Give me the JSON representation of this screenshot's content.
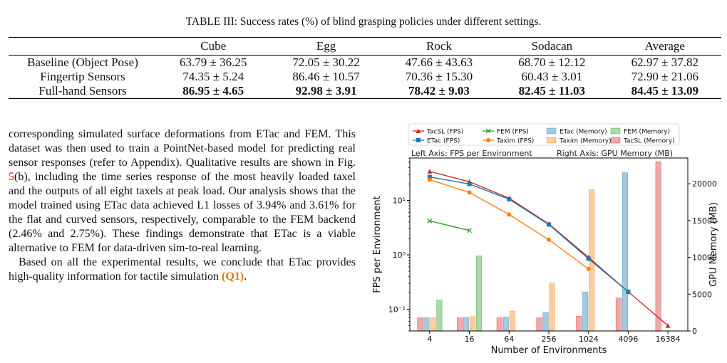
{
  "caption": "TABLE III: Success rates (%) of blind grasping policies under different settings.",
  "table": {
    "headers": [
      "",
      "Cube",
      "Egg",
      "Rock",
      "Sodacan",
      "Average"
    ],
    "rows": [
      {
        "label": "Baseline (Object Pose)",
        "cells": [
          "63.79 ± 36.25",
          "72.05 ± 30.22",
          "47.66 ± 43.63",
          "68.70 ± 12.12",
          "62.97 ± 37.82"
        ],
        "bold": false
      },
      {
        "label": "Fingertip Sensors",
        "cells": [
          "74.35 ± 5.24",
          "86.46 ± 10.57",
          "70.36 ± 15.30",
          "60.43 ± 3.01",
          "72.90 ± 21.06"
        ],
        "bold": false
      },
      {
        "label": "Full-hand Sensors",
        "cells": [
          "86.95 ± 4.65",
          "92.98 ± 3.91",
          "78.42 ± 9.03",
          "82.45 ± 11.03",
          "84.45 ± 13.09"
        ],
        "bold": true
      }
    ]
  },
  "body": {
    "p1_a": "corresponding simulated surface deformations from ETac and FEM. This dataset was then used to train a PointNet-based model for predicting real sensor responses (refer to Appendix). Qualitative results are shown in Fig. ",
    "p1_ref": "5",
    "p1_b": "(b), including the time series response of the most heavily loaded taxel and the outputs of all eight taxels at peak load. Our analysis shows that the model trained using ETac data achieved L1 losses of 3.94% and 3.61% for the flat and curved sensors, respectively, comparable to the FEM backend (2.46% and 2.75%). These findings demonstrate that ETac is a viable alternative to FEM for data-driven sim-to-real learning.",
    "p2_a": "Based on all the experimental results, we conclude that ETac provides high-quality information for tactile simulation ",
    "p2_ref": "(Q1)",
    "p2_b": "."
  },
  "chart_data": {
    "type": "bar+line",
    "xlabel": "Number of Environments",
    "ylabel_left": "FPS per Environment",
    "ylabel_right": "GPU Memory (MB)",
    "left_axis_note": "Left Axis: FPS per Environment",
    "right_axis_note": "Right Axis: GPU Memory (MB)",
    "categories": [
      "4",
      "16",
      "64",
      "256",
      "1024",
      "4096",
      "16384"
    ],
    "yscale_left": "log",
    "ylim_left": [
      0.04,
      60
    ],
    "left_ticks": [
      "10⁻¹",
      "10⁰",
      "10¹"
    ],
    "ylim_right": [
      0,
      23500
    ],
    "right_ticks": [
      "0",
      "5000",
      "10000",
      "15000",
      "20000"
    ],
    "legend": [
      {
        "name": "TacSL (FPS)",
        "kind": "line",
        "color": "#d62728",
        "marker": "triangle"
      },
      {
        "name": "FEM (FPS)",
        "kind": "line",
        "color": "#2ca02c",
        "marker": "x"
      },
      {
        "name": "ETac (Memory)",
        "kind": "bar",
        "color": "#1f77b4"
      },
      {
        "name": "FEM (Memory)",
        "kind": "bar",
        "color": "#2ca02c"
      },
      {
        "name": "ETac (FPS)",
        "kind": "line",
        "color": "#1f77b4",
        "marker": "square"
      },
      {
        "name": "Taxim (FPS)",
        "kind": "line",
        "color": "#ff7f0e",
        "marker": "circle"
      },
      {
        "name": "Taxim (Memory)",
        "kind": "bar",
        "color": "#ff7f0e"
      },
      {
        "name": "TacSL (Memory)",
        "kind": "bar",
        "color": "#d62728"
      }
    ],
    "bar_series": [
      {
        "name": "TacSL (Memory)",
        "color": "#d62728",
        "values": [
          1800,
          1800,
          1800,
          1800,
          2000,
          4500,
          23000
        ]
      },
      {
        "name": "ETac (Memory)",
        "color": "#1f77b4",
        "values": [
          1800,
          1850,
          1900,
          2500,
          5300,
          21500,
          null
        ]
      },
      {
        "name": "Taxim (Memory)",
        "color": "#ff7f0e",
        "values": [
          1800,
          1950,
          2700,
          6500,
          19200,
          null,
          null
        ]
      },
      {
        "name": "FEM (Memory)",
        "color": "#2ca02c",
        "values": [
          4200,
          10200,
          null,
          null,
          null,
          null,
          null
        ]
      }
    ],
    "line_series": [
      {
        "name": "TacSL (FPS)",
        "color": "#d62728",
        "marker": "triangle",
        "values": [
          34,
          22,
          11,
          3.7,
          0.9,
          0.21,
          0.05
        ]
      },
      {
        "name": "ETac (FPS)",
        "color": "#1f77b4",
        "marker": "square",
        "values": [
          27,
          20,
          10.5,
          3.6,
          0.85,
          0.21,
          null
        ]
      },
      {
        "name": "Taxim (FPS)",
        "color": "#ff7f0e",
        "marker": "circle",
        "values": [
          24,
          14,
          5.5,
          1.9,
          0.55,
          null,
          null
        ]
      },
      {
        "name": "FEM (FPS)",
        "color": "#2ca02c",
        "marker": "x",
        "values": [
          4.2,
          2.8,
          null,
          null,
          null,
          null,
          null
        ]
      }
    ]
  }
}
